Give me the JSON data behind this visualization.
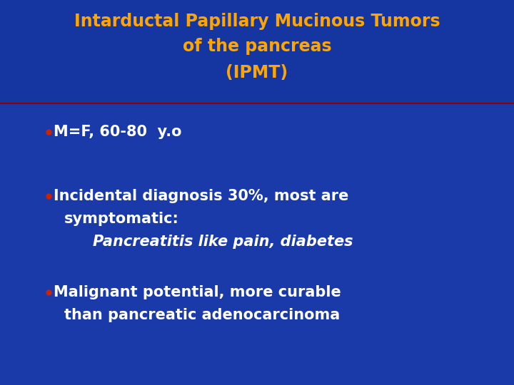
{
  "title_line1": "Intarductal Papillary Mucinous Tumors",
  "title_line2": "of the pancreas",
  "title_line3": "(IPMT)",
  "title_color": "#FFA500",
  "title_bg_color": "#1535a0",
  "body_bg_color": "#1a3aaa",
  "separator_color": "#8B0000",
  "bullet_color": "#cc2200",
  "text_color": "#ffffff",
  "bullet1": "M=F, 60-80  y.o",
  "bullet2_line1": "Incidental diagnosis 30%, most are",
  "bullet2_line2": "symptomatic:",
  "bullet2_line3": "Pancreatitis like pain, diabetes",
  "bullet3_line1": "Malignant potential, more curable",
  "bullet3_line2": "than pancreatic adenocarcinoma",
  "figsize": [
    7.2,
    5.4
  ],
  "dpi": 100
}
